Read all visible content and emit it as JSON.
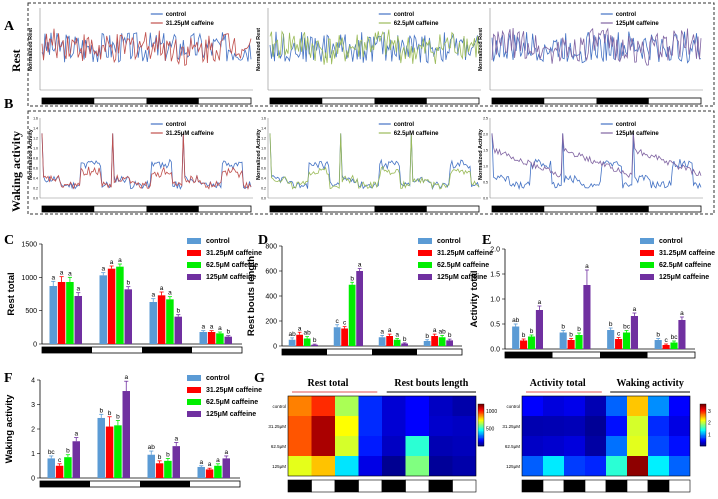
{
  "figure": {
    "panel_letters": [
      "A",
      "B",
      "C",
      "D",
      "E",
      "F",
      "G"
    ],
    "row_titles": {
      "rest": "Rest",
      "waking": "Waking activity"
    }
  },
  "chart_data": [
    {
      "panel": "A",
      "type": "line",
      "ylabel": "Normalized Rest",
      "charts": [
        {
          "series": [
            "control",
            "31.25μM caffeine"
          ],
          "colors": [
            "#4472c4",
            "#c0504d"
          ]
        },
        {
          "series": [
            "control",
            "62.5μM caffeine"
          ],
          "colors": [
            "#4472c4",
            "#9bbb59"
          ]
        },
        {
          "series": [
            "control",
            "125μM caffeine"
          ],
          "colors": [
            "#4472c4",
            "#8064a2"
          ]
        }
      ]
    },
    {
      "panel": "B",
      "type": "line",
      "ylabel": "Normalized Activity",
      "charts": [
        {
          "series": [
            "control",
            "31.25μM caffeine"
          ],
          "colors": [
            "#4472c4",
            "#c0504d"
          ],
          "yticks": [
            "0.0",
            "0.2",
            "0.4",
            "0.6",
            "0.8",
            "1.0",
            "1.2",
            "1.4",
            "1.6"
          ]
        },
        {
          "series": [
            "control",
            "62.5μM caffeine"
          ],
          "colors": [
            "#4472c4",
            "#9bbb59"
          ],
          "yticks": [
            "0.0",
            "0.2",
            "0.4",
            "0.6",
            "0.8",
            "1.0",
            "1.2",
            "1.4",
            "1.6"
          ]
        },
        {
          "series": [
            "control",
            "125μM caffeine"
          ],
          "colors": [
            "#4472c4",
            "#8064a2"
          ],
          "yticks": [
            "0.0",
            "0.5",
            "1.0",
            "1.5",
            "2.0",
            "2.5"
          ]
        }
      ]
    },
    {
      "panel": "C",
      "type": "bar",
      "ylabel": "Rest total",
      "yticks": [
        "0",
        "500",
        "1000",
        "1500"
      ],
      "ylim": [
        0,
        1500
      ],
      "legend": [
        "control",
        "31.25μM caffeine",
        "62.5μM caffeine",
        "125μM caffeine"
      ],
      "colors": [
        "#5b9bd5",
        "#ff0000",
        "#00ee00",
        "#7030a0"
      ],
      "groups": [
        {
          "values": [
            870,
            930,
            930,
            720
          ],
          "errors": [
            70,
            80,
            70,
            50
          ],
          "letters": [
            "a",
            "a",
            "a",
            "a"
          ]
        },
        {
          "values": [
            1030,
            1130,
            1160,
            820
          ],
          "errors": [
            40,
            40,
            40,
            40
          ],
          "letters": [
            "a",
            "a",
            "a",
            "b"
          ]
        },
        {
          "values": [
            630,
            730,
            670,
            410
          ],
          "errors": [
            50,
            50,
            40,
            30
          ],
          "letters": [
            "a",
            "a",
            "a",
            "b"
          ]
        },
        {
          "values": [
            180,
            180,
            160,
            110
          ],
          "errors": [
            20,
            20,
            20,
            15
          ],
          "letters": [
            "a",
            "a",
            "a",
            "b"
          ]
        }
      ]
    },
    {
      "panel": "D",
      "type": "bar",
      "ylabel": "Rest bouts length",
      "yticks": [
        "0",
        "200",
        "400",
        "600",
        "800"
      ],
      "ylim": [
        0,
        800
      ],
      "legend": [
        "control",
        "31.25μM caffeine",
        "62.5μM caffeine",
        "125μM caffeine"
      ],
      "colors": [
        "#5b9bd5",
        "#ff0000",
        "#00ee00",
        "#7030a0"
      ],
      "groups": [
        {
          "values": [
            50,
            90,
            60,
            10
          ],
          "errors": [
            15,
            20,
            15,
            5
          ],
          "letters": [
            "ab",
            "a",
            "ab",
            "b"
          ]
        },
        {
          "values": [
            150,
            140,
            490,
            600
          ],
          "errors": [
            20,
            15,
            20,
            20
          ],
          "letters": [
            "c",
            "c",
            "b",
            "a"
          ]
        },
        {
          "values": [
            70,
            80,
            50,
            20
          ],
          "errors": [
            15,
            15,
            10,
            5
          ],
          "letters": [
            "a",
            "a",
            "a",
            "b"
          ]
        },
        {
          "values": [
            40,
            80,
            70,
            45
          ],
          "errors": [
            10,
            15,
            15,
            10
          ],
          "letters": [
            "b",
            "a",
            "ab",
            "b"
          ]
        }
      ]
    },
    {
      "panel": "E",
      "type": "bar",
      "ylabel": "Activity total",
      "yticks": [
        "0.0",
        "0.5",
        "1.0",
        "1.5",
        "2.0"
      ],
      "ylim": [
        0,
        2
      ],
      "legend": [
        "control",
        "31.25μM caffeine",
        "62.5μM caffeine",
        "125μM caffeine"
      ],
      "colors": [
        "#5b9bd5",
        "#ff0000",
        "#00ee00",
        "#7030a0"
      ],
      "groups": [
        {
          "values": [
            0.45,
            0.17,
            0.25,
            0.78
          ],
          "errors": [
            0.05,
            0.03,
            0.03,
            0.08
          ],
          "letters": [
            "ab",
            "b",
            "b",
            "a"
          ]
        },
        {
          "values": [
            0.33,
            0.18,
            0.28,
            1.28
          ],
          "errors": [
            0.04,
            0.03,
            0.04,
            0.3
          ],
          "letters": [
            "b",
            "b",
            "b",
            "a"
          ]
        },
        {
          "values": [
            0.38,
            0.2,
            0.33,
            0.66
          ],
          "errors": [
            0.04,
            0.03,
            0.04,
            0.06
          ],
          "letters": [
            "b",
            "c",
            "bc",
            "a"
          ]
        },
        {
          "values": [
            0.18,
            0.08,
            0.13,
            0.58
          ],
          "errors": [
            0.03,
            0.02,
            0.03,
            0.06
          ],
          "letters": [
            "b",
            "c",
            "bc",
            "a"
          ]
        }
      ]
    },
    {
      "panel": "F",
      "type": "bar",
      "ylabel": "Waking activity",
      "yticks": [
        "0",
        "1",
        "2",
        "3",
        "4"
      ],
      "ylim": [
        0,
        4
      ],
      "legend": [
        "control",
        "31.25μM caffeine",
        "62.5μM caffeine",
        "125μM caffeine"
      ],
      "colors": [
        "#5b9bd5",
        "#ff0000",
        "#00ee00",
        "#7030a0"
      ],
      "groups": [
        {
          "values": [
            0.8,
            0.5,
            0.85,
            1.5
          ],
          "errors": [
            0.1,
            0.08,
            0.1,
            0.15
          ],
          "letters": [
            "bc",
            "c",
            "b",
            "a"
          ]
        },
        {
          "values": [
            2.45,
            2.1,
            2.15,
            3.55
          ],
          "errors": [
            0.15,
            0.4,
            0.2,
            0.4
          ],
          "letters": [
            "b",
            "b",
            "b",
            "a"
          ]
        },
        {
          "values": [
            0.95,
            0.6,
            0.7,
            1.3
          ],
          "errors": [
            0.15,
            0.1,
            0.1,
            0.15
          ],
          "letters": [
            "ab",
            "b",
            "b",
            "a"
          ]
        },
        {
          "values": [
            0.45,
            0.35,
            0.5,
            0.8
          ],
          "errors": [
            0.05,
            0.05,
            0.08,
            0.1
          ],
          "letters": [
            "a",
            "a",
            "a",
            "a"
          ]
        }
      ]
    },
    {
      "panel": "G",
      "type": "heatmap",
      "maps": [
        {
          "titles": [
            "Rest total",
            "Rest bouts length"
          ],
          "rows": [
            "control",
            "31.25μM",
            "62.5μM",
            "125μM"
          ],
          "colorbar": {
            "ticks": [
              "500",
              "1000"
            ],
            "min": 0,
            "max": 1200
          },
          "values": [
            [
              900,
              1000,
              650,
              200,
              100,
              150,
              80,
              50
            ],
            [
              950,
              1150,
              750,
              200,
              100,
              150,
              90,
              80
            ],
            [
              950,
              1150,
              700,
              180,
              80,
              500,
              60,
              70
            ],
            [
              720,
              820,
              420,
              120,
              20,
              600,
              30,
              50
            ]
          ]
        },
        {
          "titles": [
            "Activity total",
            "Waking activity"
          ],
          "rows": [
            "control",
            "31.25μM",
            "62.5μM",
            "125μM"
          ],
          "colorbar": {
            "ticks": [
              "1",
              "2",
              "3"
            ],
            "min": 0,
            "max": 3.6
          },
          "values": [
            [
              0.45,
              0.33,
              0.38,
              0.18,
              0.8,
              2.45,
              0.95,
              0.45
            ],
            [
              0.17,
              0.18,
              0.2,
              0.08,
              0.5,
              2.1,
              0.6,
              0.35
            ],
            [
              0.25,
              0.28,
              0.33,
              0.13,
              0.85,
              2.15,
              0.7,
              0.5
            ],
            [
              0.78,
              1.28,
              0.66,
              0.58,
              1.5,
              3.55,
              1.3,
              0.8
            ]
          ]
        }
      ]
    }
  ]
}
